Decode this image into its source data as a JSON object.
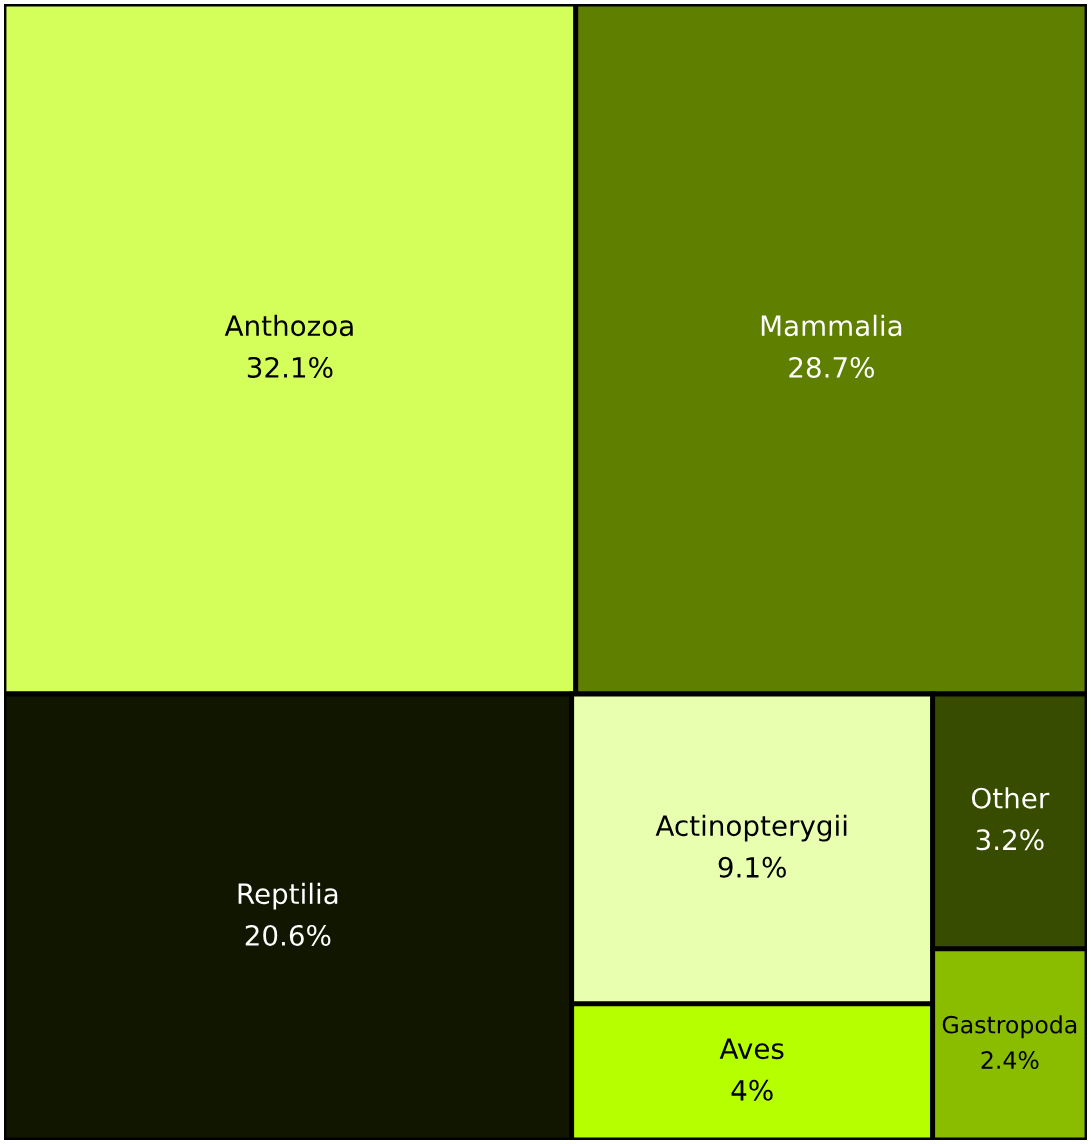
{
  "chart_data": {
    "type": "other",
    "categories": [
      "Anthozoa",
      "Mammalia",
      "Reptilia",
      "Actinopterygii",
      "Aves",
      "Other",
      "Gastropoda"
    ],
    "values": [
      32.1,
      28.7,
      20.6,
      9.1,
      4,
      3.2,
      2.4
    ],
    "value_labels": [
      "32.1%",
      "28.7%",
      "20.6%",
      "9.1%",
      "4%",
      "3.2%",
      "2.4%"
    ],
    "colors": [
      "#d4ff5a",
      "#5e7f00",
      "#111600",
      "#e8ffb0",
      "#b5ff00",
      "#384c00",
      "#8abd00"
    ]
  }
}
